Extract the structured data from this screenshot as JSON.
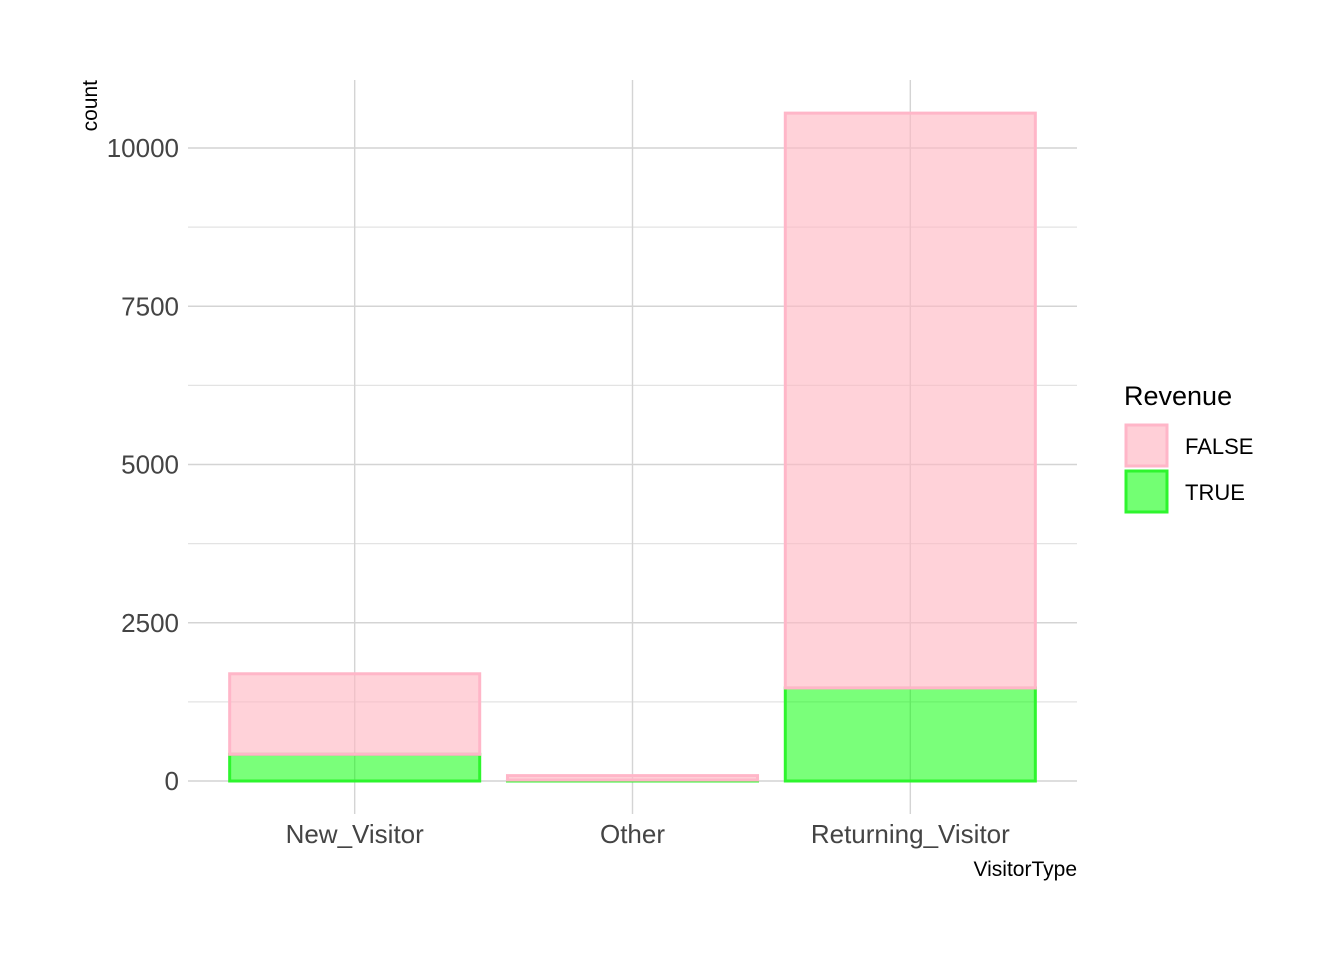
{
  "chart_data": {
    "type": "bar",
    "stacked": true,
    "xlabel": "VisitorType",
    "ylabel": "count",
    "categories": [
      "New_Visitor",
      "Other",
      "Returning_Visitor"
    ],
    "series": [
      {
        "name": "FALSE",
        "values": [
          1272,
          69,
          9081
        ],
        "color": "#ffb6c1"
      },
      {
        "name": "TRUE",
        "values": [
          422,
          16,
          1470
        ],
        "color": "#00ff00"
      }
    ],
    "ylim": [
      0,
      11000
    ],
    "yticks": [
      0,
      2500,
      5000,
      7500,
      10000
    ],
    "ytick_labels": [
      "0",
      "2500",
      "5000",
      "7500",
      "10000"
    ],
    "grid": true,
    "legend": {
      "title": "Revenue",
      "position": "right",
      "entries": [
        "FALSE",
        "TRUE"
      ]
    }
  }
}
